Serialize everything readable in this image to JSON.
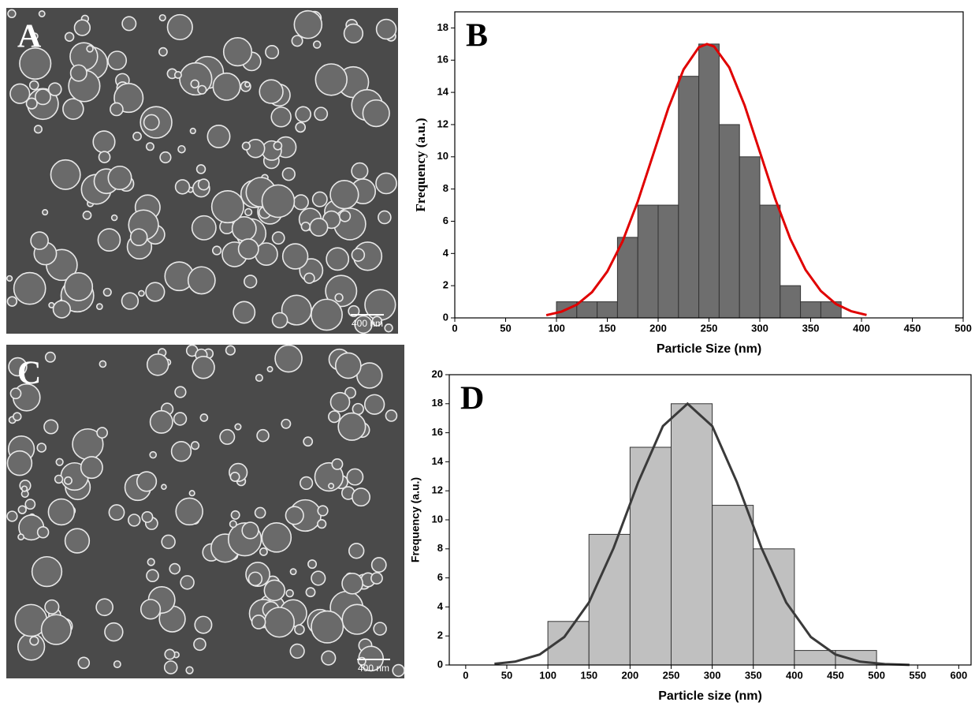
{
  "images": [
    {
      "label": "A",
      "scale_bar": "400 nm"
    },
    {
      "label": "C",
      "scale_bar": "400 nm"
    }
  ],
  "chart_data": [
    {
      "type": "histogram",
      "label": "B",
      "xlabel": "Particle Size (nm)",
      "ylabel": "Frequency (a.u.)",
      "bins": [
        100,
        120,
        140,
        160,
        180,
        200,
        220,
        240,
        260,
        280,
        300,
        320,
        340,
        360,
        380
      ],
      "values": [
        1,
        1,
        1,
        5,
        7,
        7,
        15,
        17,
        12,
        10,
        7,
        2,
        1,
        1
      ],
      "color": "#6e6e6e",
      "xlim": [
        0,
        500
      ],
      "ylim": [
        0,
        19
      ],
      "xticks": [
        0,
        50,
        100,
        150,
        200,
        250,
        300,
        350,
        400,
        450,
        500
      ],
      "yticks": [
        0,
        2,
        4,
        6,
        8,
        10,
        12,
        14,
        16,
        18
      ],
      "fit": {
        "color": "#e00000",
        "x": [
          90,
          105,
          120,
          135,
          150,
          165,
          180,
          195,
          210,
          225,
          240,
          248,
          255,
          270,
          285,
          300,
          315,
          330,
          345,
          360,
          375,
          390,
          405
        ],
        "values": [
          0.17,
          0.39,
          0.82,
          1.6,
          2.88,
          4.75,
          7.23,
          10.12,
          13.02,
          15.42,
          16.8,
          17,
          16.85,
          15.54,
          13.2,
          10.31,
          7.41,
          4.9,
          2.98,
          1.67,
          0.86,
          0.41,
          0.18
        ]
      }
    },
    {
      "type": "histogram",
      "label": "D",
      "xlabel": "Particle size (nm)",
      "ylabel": "Frequency (a.u.)",
      "bins": [
        100,
        150,
        200,
        250,
        300,
        350,
        400,
        450,
        500
      ],
      "values": [
        3,
        9,
        15,
        18,
        11,
        8,
        1,
        1
      ],
      "color": "#c0c0c0",
      "xlim": [
        -20,
        615
      ],
      "ylim": [
        0,
        20
      ],
      "xticks": [
        0,
        50,
        100,
        150,
        200,
        250,
        300,
        350,
        400,
        450,
        500,
        550,
        600
      ],
      "yticks": [
        0,
        2,
        4,
        6,
        8,
        10,
        12,
        14,
        16,
        18,
        20
      ],
      "fit": {
        "color": "#3a3a3a",
        "x": [
          35,
          60,
          90,
          120,
          150,
          180,
          210,
          240,
          270,
          300,
          330,
          360,
          390,
          420,
          450,
          480,
          510,
          540
        ],
        "values": [
          0.08,
          0.23,
          0.72,
          1.93,
          4.31,
          8.06,
          12.6,
          16.46,
          18,
          16.46,
          12.6,
          8.06,
          4.31,
          1.93,
          0.72,
          0.23,
          0.06,
          0.01
        ]
      }
    }
  ]
}
